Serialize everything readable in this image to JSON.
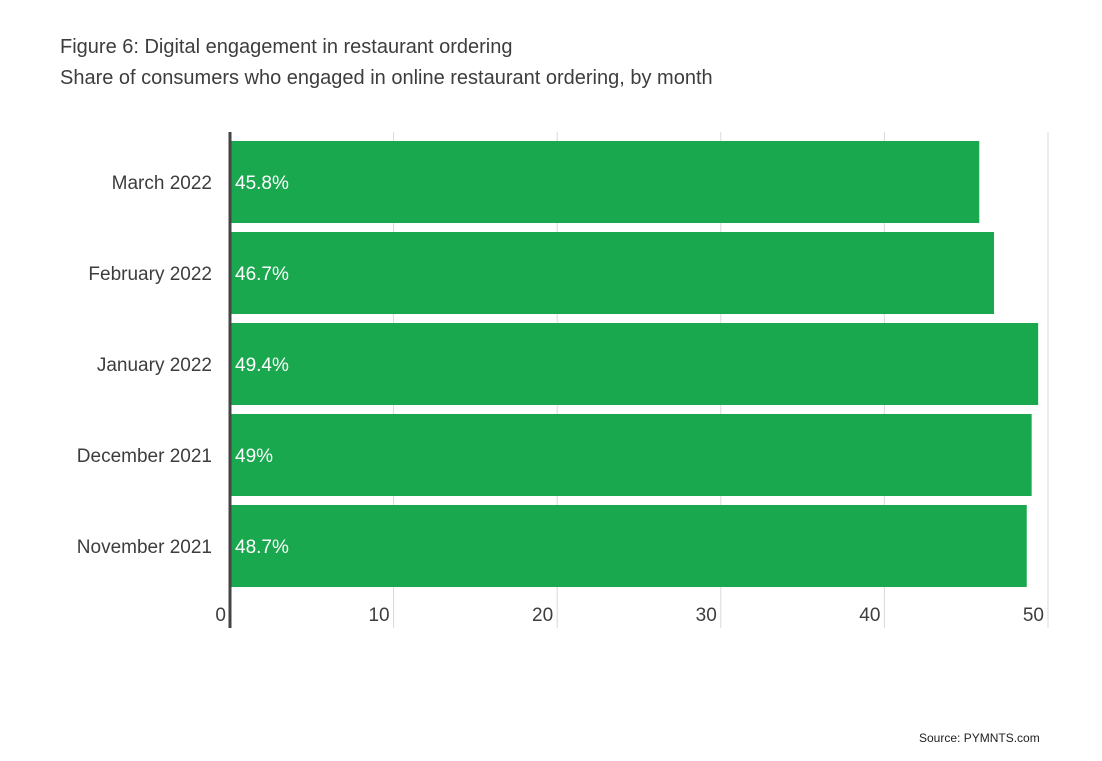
{
  "header": {
    "title": "Figure 6: Digital engagement in restaurant ordering",
    "subtitle": "Share of consumers who engaged in online restaurant ordering, by month"
  },
  "footer": {
    "source": "Source: PYMNTS.com"
  },
  "colors": {
    "bar": "#1aa84f",
    "bar_label": "#ffffff",
    "grid": "#d9d9d9",
    "axis": "#444444",
    "text": "#3d3d3d"
  },
  "chart_data": {
    "type": "bar",
    "orientation": "horizontal",
    "title": "Figure 6: Digital engagement in restaurant ordering",
    "subtitle": "Share of consumers who engaged in online restaurant ordering, by month",
    "categories": [
      "March 2022",
      "February 2022",
      "January 2022",
      "December 2021",
      "November 2021"
    ],
    "values": [
      45.8,
      46.7,
      49.4,
      49,
      48.7
    ],
    "data_labels": [
      "45.8%",
      "46.7%",
      "49.4%",
      "49%",
      "48.7%"
    ],
    "xlim": [
      0,
      50
    ],
    "xticks": [
      0,
      10,
      20,
      30,
      40,
      50
    ],
    "xlabel": "",
    "ylabel": "",
    "grid": true,
    "legend": "none"
  }
}
